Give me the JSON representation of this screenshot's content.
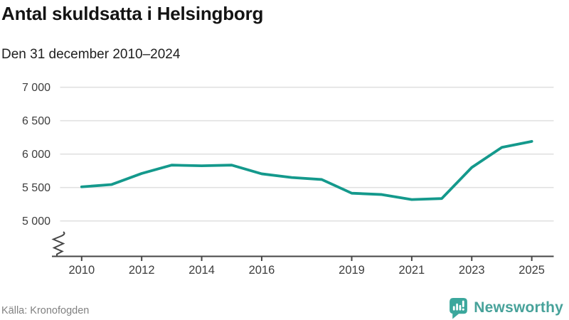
{
  "header": {
    "title": "Antal skuldsatta i Helsingborg",
    "subtitle": "Den 31 december 2010–2024"
  },
  "chart_data": {
    "type": "line",
    "title": "Antal skuldsatta i Helsingborg",
    "subtitle": "Den 31 december 2010–2024",
    "x": [
      2010,
      2011,
      2012,
      2013,
      2014,
      2015,
      2016,
      2017,
      2018,
      2019,
      2020,
      2021,
      2022,
      2023,
      2024,
      2025
    ],
    "series": [
      {
        "name": "Antal skuldsatta",
        "values": [
          5510,
          5545,
          5710,
          5835,
          5825,
          5835,
          5705,
          5650,
          5620,
          5415,
          5395,
          5320,
          5335,
          5800,
          6100,
          6190
        ]
      }
    ],
    "x_tick_years": [
      2010,
      2012,
      2014,
      2016,
      2019,
      2021,
      2023,
      2025
    ],
    "x_tick_labels": [
      "2010",
      "2012",
      "2014",
      "2016",
      "2019",
      "2021",
      "2023",
      "2025"
    ],
    "y_ticks": [
      {
        "value": 5000,
        "label": "5 000"
      },
      {
        "value": 5500,
        "label": "5 500"
      },
      {
        "value": 6000,
        "label": "6 000"
      },
      {
        "value": 6500,
        "label": "6 500"
      },
      {
        "value": 7000,
        "label": "7 000"
      }
    ],
    "ylim": [
      5000,
      7000
    ],
    "x_axis_range": [
      2010,
      2025
    ],
    "axis_break": true,
    "grid": "horizontal",
    "legend": "none",
    "line_color": "#14998c"
  },
  "footer": {
    "source": "Källa: Kronofogden",
    "brand": "Newsworthy"
  },
  "colors": {
    "line": "#14998c",
    "axis": "#464646",
    "grid": "#e1e1e1",
    "tick_text": "#3d3d3d",
    "title_text": "#141414",
    "source_text": "#818181",
    "brand_teal": "#3ba79c"
  }
}
